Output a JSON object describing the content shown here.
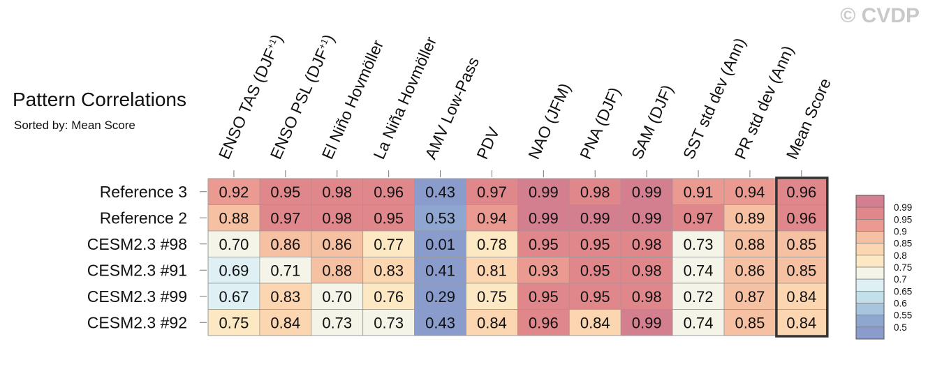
{
  "watermark": "© CVDP",
  "chart_data": {
    "type": "heatmap",
    "title": "Pattern Correlations",
    "subtitle": "Sorted by: Mean Score",
    "columns": [
      "ENSO TAS (DJF+1)",
      "ENSO PSL (DJF+1)",
      "El Niño Hovmöller",
      "La Niña Hovmöller",
      "AMV Low-Pass",
      "PDV",
      "NAO (JFM)",
      "PNA (DJF)",
      "SAM (DJF)",
      "SST std dev (Ann)",
      "PR std dev (Ann)",
      "Mean Score"
    ],
    "rows": [
      {
        "name": "Reference 3",
        "values": [
          0.92,
          0.95,
          0.98,
          0.96,
          0.43,
          0.97,
          0.99,
          0.98,
          0.99,
          0.91,
          0.94,
          0.96
        ]
      },
      {
        "name": "Reference 2",
        "values": [
          0.88,
          0.97,
          0.98,
          0.95,
          0.53,
          0.94,
          0.99,
          0.99,
          0.99,
          0.97,
          0.89,
          0.96
        ]
      },
      {
        "name": "CESM2.3 #98",
        "values": [
          0.7,
          0.86,
          0.86,
          0.77,
          0.01,
          0.78,
          0.95,
          0.95,
          0.98,
          0.73,
          0.88,
          0.85
        ]
      },
      {
        "name": "CESM2.3 #91",
        "values": [
          0.69,
          0.71,
          0.88,
          0.83,
          0.41,
          0.81,
          0.93,
          0.95,
          0.98,
          0.74,
          0.86,
          0.85
        ]
      },
      {
        "name": "CESM2.3 #99",
        "values": [
          0.67,
          0.83,
          0.7,
          0.76,
          0.29,
          0.75,
          0.95,
          0.95,
          0.98,
          0.72,
          0.87,
          0.84
        ]
      },
      {
        "name": "CESM2.3 #92",
        "values": [
          0.75,
          0.84,
          0.73,
          0.73,
          0.43,
          0.84,
          0.96,
          0.84,
          0.99,
          0.74,
          0.85,
          0.84
        ]
      }
    ],
    "highlight_column": "Mean Score",
    "colorbar": {
      "levels": [
        "0.99",
        "0.95",
        "0.9",
        "0.85",
        "0.8",
        "0.75",
        "0.7",
        "0.65",
        "0.6",
        "0.55",
        "0.5"
      ],
      "colors": [
        "#d47f8f",
        "#e0878b",
        "#eb9a92",
        "#f6c1a2",
        "#fbd6b1",
        "#fde8c4",
        "#f4f5e8",
        "#def0f4",
        "#c3dfea",
        "#a9c5dd",
        "#8fa6d0",
        "#8a9ccc"
      ]
    }
  }
}
